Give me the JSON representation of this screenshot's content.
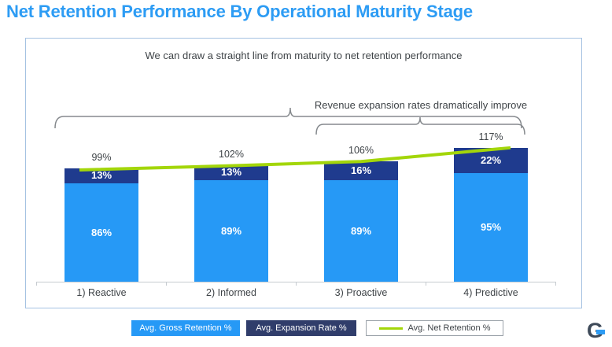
{
  "title": "Net Retention Performance By Operational Maturity Stage",
  "annotations": {
    "maturity_line": "We can draw a straight line from maturity to net retention performance",
    "expansion": "Revenue expansion rates dramatically improve"
  },
  "chart_data": {
    "type": "bar",
    "stacked": true,
    "title": "Net Retention Performance By Operational Maturity Stage",
    "categories": [
      "1) Reactive",
      "2) Informed",
      "3) Proactive",
      "4) Predictive"
    ],
    "series": [
      {
        "name": "Avg. Gross Retention %",
        "type": "bar",
        "color": "#2699F6",
        "values": [
          86,
          89,
          89,
          95
        ],
        "labels": [
          "86%",
          "89%",
          "89%",
          "95%"
        ]
      },
      {
        "name": "Avg. Expansion Rate %",
        "type": "bar",
        "color": "#1F3B8E",
        "values": [
          13,
          13,
          16,
          22
        ],
        "labels": [
          "13%",
          "13%",
          "16%",
          "22%"
        ]
      },
      {
        "name": "Avg. Net Retention %",
        "type": "line",
        "color": "#A3D60A",
        "values": [
          99,
          102,
          106,
          117
        ],
        "labels": [
          "99%",
          "102%",
          "106%",
          "117%"
        ]
      }
    ],
    "xlabel": "",
    "ylabel": "",
    "ylim": [
      0,
      125
    ],
    "grid": false,
    "legend_position": "bottom"
  },
  "legend": {
    "items": [
      {
        "label": "Avg. Gross Retention %",
        "color": "#2699F6",
        "style": "filled"
      },
      {
        "label": "Avg. Expansion Rate %",
        "color": "#303D6B",
        "style": "filled"
      },
      {
        "label": "Avg. Net Retention %",
        "color": "#A3D60A",
        "style": "line"
      }
    ]
  },
  "logo": {
    "letter": "G"
  }
}
